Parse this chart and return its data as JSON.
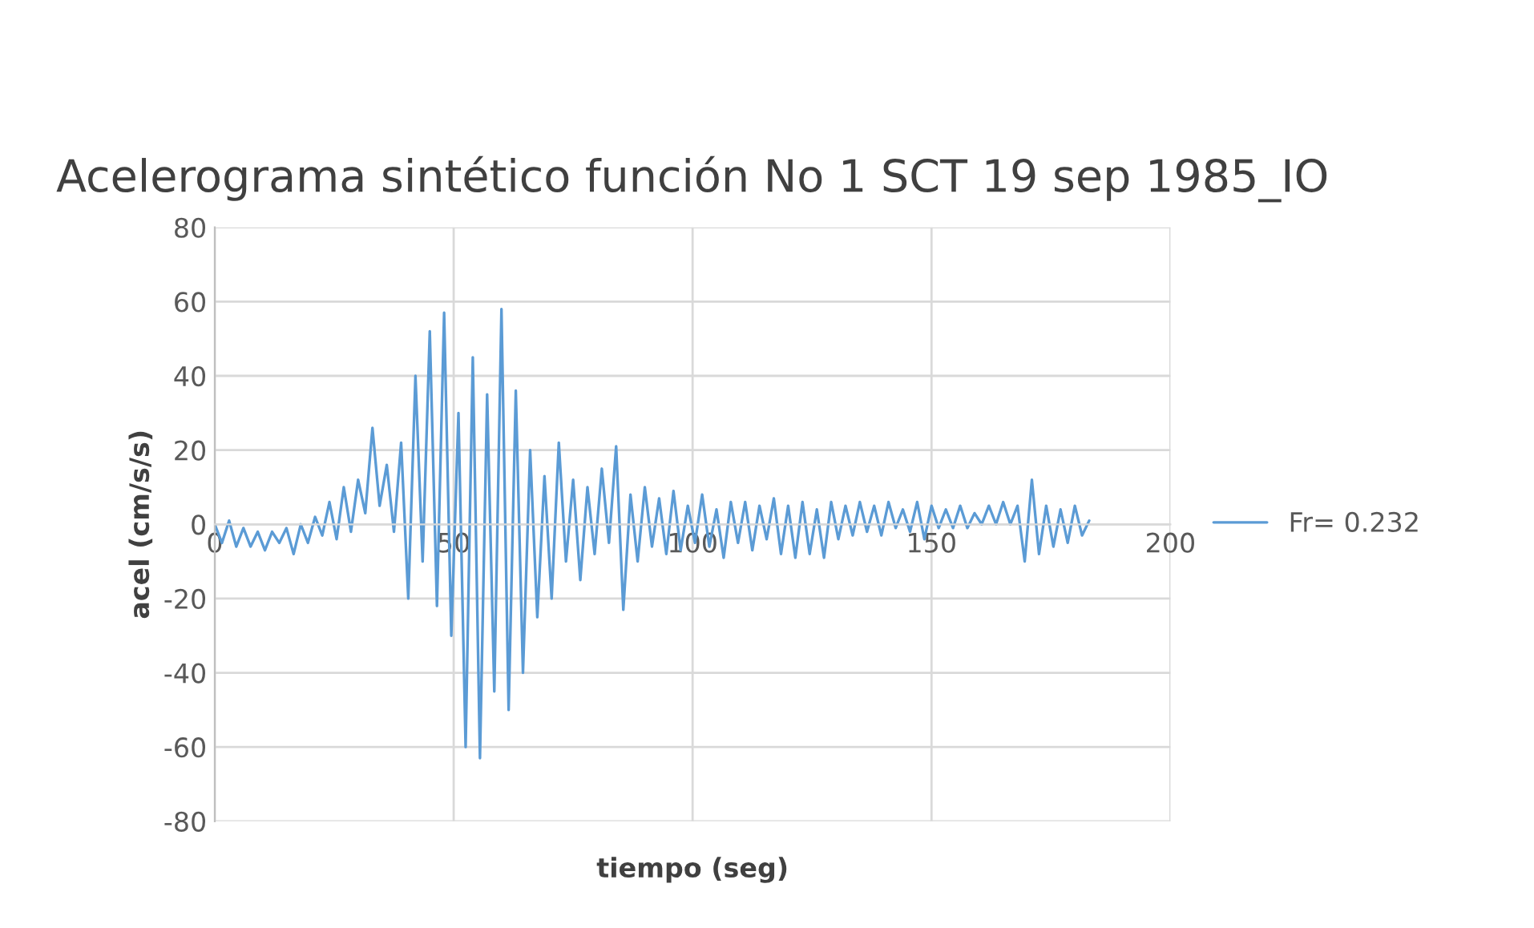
{
  "chart_data": {
    "type": "line",
    "title": "Acelerograma sintético función No 1 SCT 19 sep 1985_IO",
    "xlabel": "tiempo (seg)",
    "ylabel": "acel (cm/s/s)",
    "xlim": [
      0,
      200
    ],
    "xticks": [
      0,
      50,
      100,
      150,
      200
    ],
    "ylim": [
      -80,
      80
    ],
    "yticks": [
      -80,
      -60,
      -40,
      -20,
      0,
      20,
      40,
      60,
      80
    ],
    "grid": true,
    "legend": "right",
    "line_style": "solid",
    "x": [
      0,
      1.5,
      3,
      4.5,
      6,
      7.5,
      9,
      10.5,
      12,
      13.5,
      15,
      16.5,
      18,
      19.5,
      21,
      22.5,
      24,
      25.5,
      27,
      28.5,
      30,
      31.5,
      33,
      34.5,
      36,
      37.5,
      39,
      40.5,
      42,
      43.5,
      45,
      46.5,
      48,
      49.5,
      51,
      52.5,
      54,
      55.5,
      57,
      58.5,
      60,
      61.5,
      63,
      64.5,
      66,
      67.5,
      69,
      70.5,
      72,
      73.5,
      75,
      76.5,
      78,
      79.5,
      81,
      82.5,
      84,
      85.5,
      87,
      88.5,
      90,
      91.5,
      93,
      94.5,
      96,
      97.5,
      99,
      100.5,
      102,
      103.5,
      105,
      106.5,
      108,
      109.5,
      111,
      112.5,
      114,
      115.5,
      117,
      118.5,
      120,
      121.5,
      123,
      124.5,
      126,
      127.5,
      129,
      130.5,
      132,
      133.5,
      135,
      136.5,
      138,
      139.5,
      141,
      142.5,
      144,
      145.5,
      147,
      148.5,
      150,
      151.5,
      153,
      154.5,
      156,
      157.5,
      159,
      160.5,
      162,
      163.5,
      165,
      166.5,
      168,
      169.5,
      171,
      172.5,
      174,
      175.5,
      177,
      178.5,
      180,
      181.5,
      183
    ],
    "series": [
      {
        "name": "Fr= 0.232",
        "color": "#5b9bd5",
        "values": [
          0,
          -5,
          1,
          -6,
          -1,
          -6,
          -2,
          -7,
          -2,
          -5,
          -1,
          -8,
          0,
          -5,
          2,
          -3,
          6,
          -4,
          10,
          -2,
          12,
          3,
          26,
          5,
          16,
          -2,
          22,
          -20,
          40,
          -10,
          52,
          -22,
          57,
          -30,
          30,
          -60,
          45,
          -63,
          35,
          -45,
          58,
          -50,
          36,
          -40,
          20,
          -25,
          13,
          -20,
          22,
          -10,
          12,
          -15,
          10,
          -8,
          15,
          -5,
          21,
          -23,
          8,
          -10,
          10,
          -6,
          7,
          -8,
          9,
          -7,
          5,
          -5,
          8,
          -6,
          4,
          -9,
          6,
          -5,
          6,
          -7,
          5,
          -4,
          7,
          -8,
          5,
          -9,
          6,
          -8,
          4,
          -9,
          6,
          -4,
          5,
          -3,
          6,
          -2,
          5,
          -3,
          6,
          -1,
          4,
          -2,
          6,
          -4,
          5,
          -1,
          4,
          -1,
          5,
          -1,
          3,
          0,
          5,
          0,
          6,
          0,
          5,
          -10,
          12,
          -8,
          5,
          -6,
          4,
          -5,
          5,
          -3,
          1
        ]
      }
    ]
  }
}
